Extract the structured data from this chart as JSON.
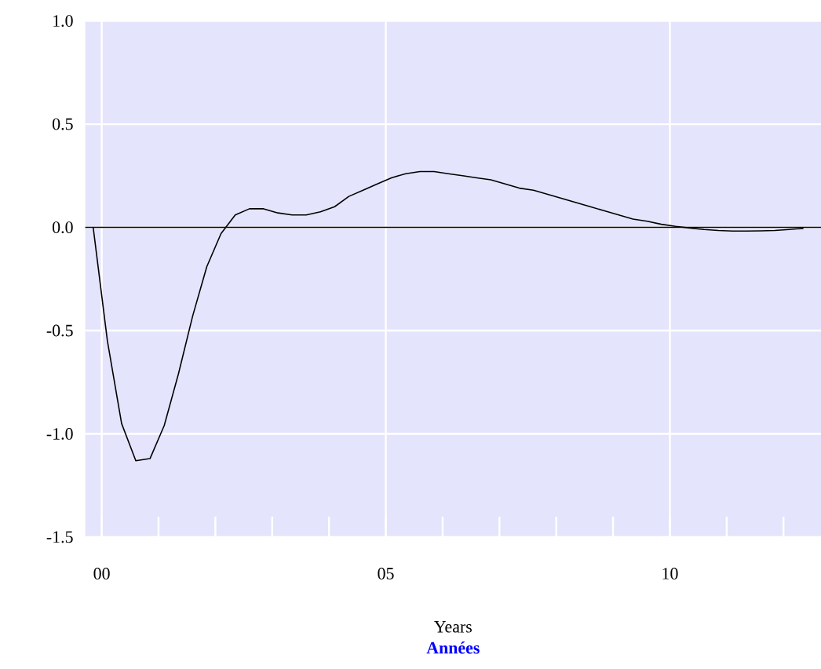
{
  "chart_data": {
    "type": "line",
    "xlabel": "Years",
    "annotations": [
      "**Années**"
    ],
    "x": [
      -0.15,
      0.1,
      0.35,
      0.6,
      0.85,
      1.1,
      1.35,
      1.6,
      1.85,
      2.1,
      2.35,
      2.6,
      2.85,
      3.1,
      3.35,
      3.6,
      3.85,
      4.1,
      4.35,
      4.6,
      4.85,
      5.1,
      5.35,
      5.6,
      5.85,
      6.1,
      6.35,
      6.6,
      6.85,
      7.1,
      7.35,
      7.6,
      7.85,
      8.1,
      8.35,
      8.6,
      8.85,
      9.1,
      9.35,
      9.6,
      9.85,
      10.1,
      10.35,
      10.6,
      10.85,
      11.1,
      11.35,
      11.6,
      11.85,
      12.1,
      12.35
    ],
    "series": [
      {
        "color": "#000000",
        "values": [
          0,
          -0.55,
          -0.95,
          -1.13,
          -1.12,
          -0.96,
          -0.71,
          -0.43,
          -0.19,
          -0.03,
          0.06,
          0.09,
          0.09,
          0.07,
          0.06,
          0.06,
          0.075,
          0.1,
          0.15,
          0.18,
          0.21,
          0.24,
          0.26,
          0.27,
          0.27,
          0.26,
          0.25,
          0.24,
          0.23,
          0.21,
          0.19,
          0.18,
          0.16,
          0.14,
          0.12,
          0.1,
          0.08,
          0.06,
          0.04,
          0.03,
          0.015,
          0.005,
          -0.003,
          -0.01,
          -0.015,
          -0.018,
          -0.018,
          -0.017,
          -0.015,
          -0.01,
          -0.005
        ]
      }
    ],
    "xlim": [
      -0.29,
      12.66
    ],
    "ylim": [
      -1.5,
      1.0
    ],
    "xticks": [
      {
        "value": 0,
        "label": "00"
      },
      {
        "value": 1,
        "label": null
      },
      {
        "value": 2,
        "label": null
      },
      {
        "value": 3,
        "label": null
      },
      {
        "value": 4,
        "label": null
      },
      {
        "value": 5,
        "label": "05"
      },
      {
        "value": 6,
        "label": null
      },
      {
        "value": 7,
        "label": null
      },
      {
        "value": 8,
        "label": null
      },
      {
        "value": 9,
        "label": null
      },
      {
        "value": 10,
        "label": "10"
      },
      {
        "value": 11,
        "label": null
      },
      {
        "value": 12,
        "label": null
      }
    ],
    "yticks": [
      {
        "value": -1.5,
        "label": "-1.5"
      },
      {
        "value": -1.0,
        "label": "-1.0"
      },
      {
        "value": -0.5,
        "label": "-0.5"
      },
      {
        "value": 0.0,
        "label": "0.0"
      },
      {
        "value": 0.5,
        "label": "0.5"
      },
      {
        "value": 1.0,
        "label": "1.0"
      }
    ],
    "ref_lines": [
      {
        "axis": "y",
        "value": 0,
        "color": "#000000"
      }
    ],
    "grid": true,
    "marker": "none",
    "line_style": "solid"
  }
}
